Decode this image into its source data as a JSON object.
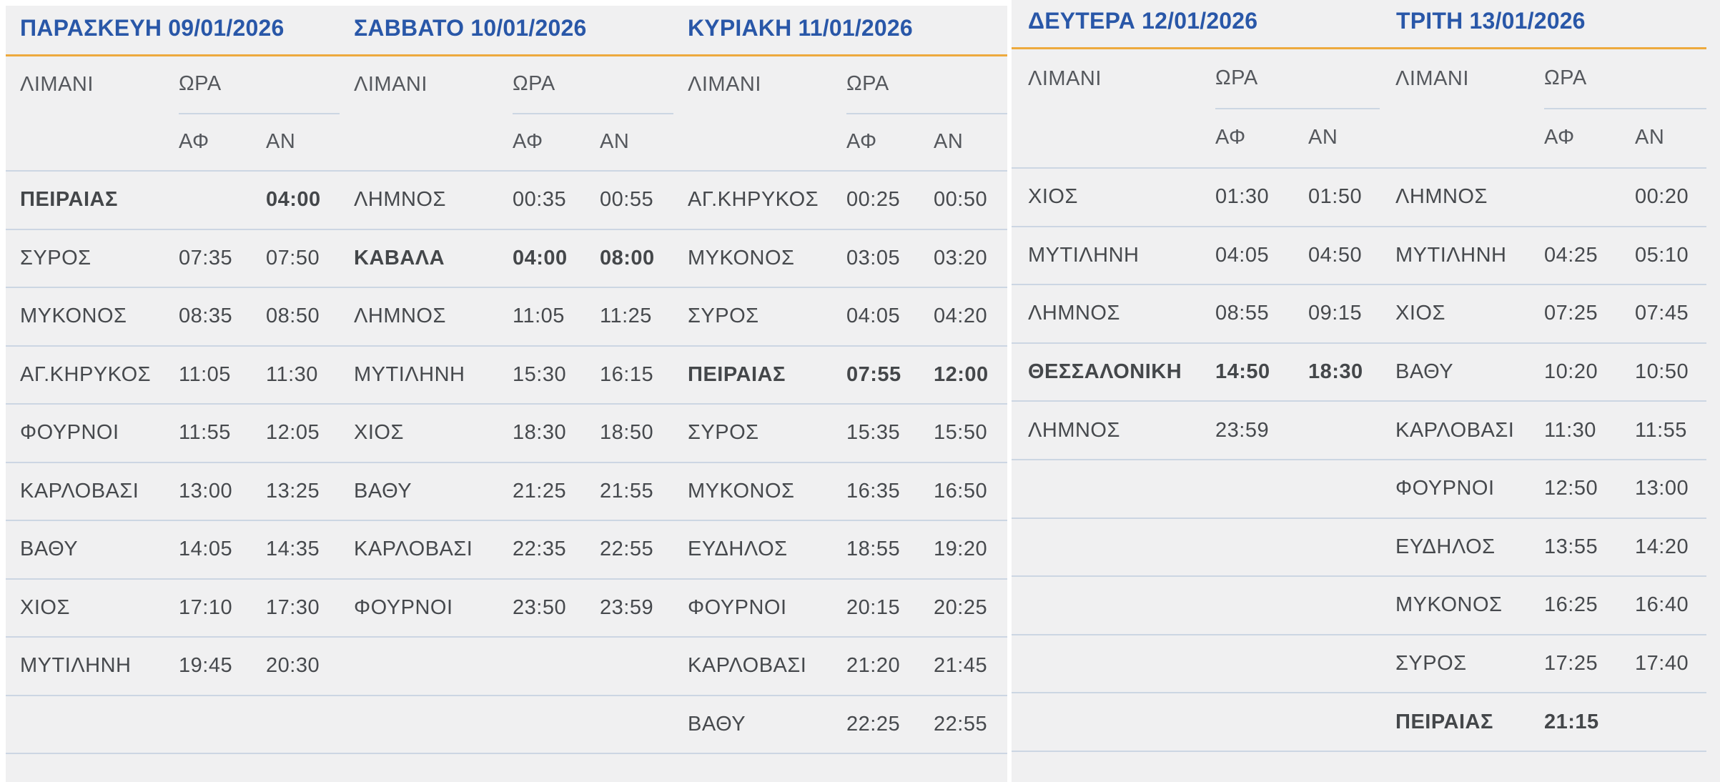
{
  "headers": {
    "port": "ΛΙΜΑΝΙ",
    "time": "ΩΡΑ",
    "arrival": "ΑΦ",
    "departure": "ΑΝ"
  },
  "colors": {
    "accent_blue": "#2957a8",
    "accent_orange": "#edaa3e",
    "divider": "#ccd6e3",
    "panel_bg": "#f0f0f1"
  },
  "days": [
    {
      "title": "ΠΑΡΑΣΚΕΥΗ 09/01/2026",
      "rows": [
        {
          "port": "ΠΕΙΡΑΙΑΣ",
          "af": "",
          "an": "04:00",
          "bold": true
        },
        {
          "port": "ΣΥΡΟΣ",
          "af": "07:35",
          "an": "07:50"
        },
        {
          "port": "ΜΥΚΟΝΟΣ",
          "af": "08:35",
          "an": "08:50"
        },
        {
          "port": "ΑΓ.ΚΗΡΥΚΟΣ",
          "af": "11:05",
          "an": "11:30"
        },
        {
          "port": "ΦΟΥΡΝΟΙ",
          "af": "11:55",
          "an": "12:05"
        },
        {
          "port": "ΚΑΡΛΟΒΑΣΙ",
          "af": "13:00",
          "an": "13:25"
        },
        {
          "port": "ΒΑΘΥ",
          "af": "14:05",
          "an": "14:35"
        },
        {
          "port": "ΧΙΟΣ",
          "af": "17:10",
          "an": "17:30"
        },
        {
          "port": "ΜΥΤΙΛΗΝΗ",
          "af": "19:45",
          "an": "20:30"
        }
      ]
    },
    {
      "title": "ΣΑΒΒΑΤΟ 10/01/2026",
      "rows": [
        {
          "port": "ΛΗΜΝΟΣ",
          "af": "00:35",
          "an": "00:55"
        },
        {
          "port": "ΚΑΒΑΛΑ",
          "af": "04:00",
          "an": "08:00",
          "bold": true
        },
        {
          "port": "ΛΗΜΝΟΣ",
          "af": "11:05",
          "an": "11:25"
        },
        {
          "port": "ΜΥΤΙΛΗΝΗ",
          "af": "15:30",
          "an": "16:15"
        },
        {
          "port": "ΧΙΟΣ",
          "af": "18:30",
          "an": "18:50"
        },
        {
          "port": "ΒΑΘΥ",
          "af": "21:25",
          "an": "21:55"
        },
        {
          "port": "ΚΑΡΛΟΒΑΣΙ",
          "af": "22:35",
          "an": "22:55"
        },
        {
          "port": "ΦΟΥΡΝΟΙ",
          "af": "23:50",
          "an": "23:59"
        }
      ]
    },
    {
      "title": "ΚΥΡΙΑΚΗ 11/01/2026",
      "rows": [
        {
          "port": "ΑΓ.ΚΗΡΥΚΟΣ",
          "af": "00:25",
          "an": "00:50"
        },
        {
          "port": "ΜΥΚΟΝΟΣ",
          "af": "03:05",
          "an": "03:20"
        },
        {
          "port": "ΣΥΡΟΣ",
          "af": "04:05",
          "an": "04:20"
        },
        {
          "port": "ΠΕΙΡΑΙΑΣ",
          "af": "07:55",
          "an": "12:00",
          "bold": true
        },
        {
          "port": "ΣΥΡΟΣ",
          "af": "15:35",
          "an": "15:50"
        },
        {
          "port": "ΜΥΚΟΝΟΣ",
          "af": "16:35",
          "an": "16:50"
        },
        {
          "port": "ΕΥΔΗΛΟΣ",
          "af": "18:55",
          "an": "19:20"
        },
        {
          "port": "ΦΟΥΡΝΟΙ",
          "af": "20:15",
          "an": "20:25"
        },
        {
          "port": "ΚΑΡΛΟΒΑΣΙ",
          "af": "21:20",
          "an": "21:45"
        },
        {
          "port": "ΒΑΘΥ",
          "af": "22:25",
          "an": "22:55"
        }
      ]
    },
    {
      "title": "ΔΕΥΤΕΡΑ 12/01/2026",
      "rows": [
        {
          "port": "ΧΙΟΣ",
          "af": "01:30",
          "an": "01:50"
        },
        {
          "port": "ΜΥΤΙΛΗΝΗ",
          "af": "04:05",
          "an": "04:50"
        },
        {
          "port": "ΛΗΜΝΟΣ",
          "af": "08:55",
          "an": "09:15"
        },
        {
          "port": "ΘΕΣΣΑΛΟΝΙΚΗ",
          "af": "14:50",
          "an": "18:30",
          "bold": true
        },
        {
          "port": "ΛΗΜΝΟΣ",
          "af": "23:59",
          "an": ""
        }
      ]
    },
    {
      "title": "ΤΡΙΤΗ 13/01/2026",
      "rows": [
        {
          "port": "ΛΗΜΝΟΣ",
          "af": "",
          "an": "00:20"
        },
        {
          "port": "ΜΥΤΙΛΗΝΗ",
          "af": "04:25",
          "an": "05:10"
        },
        {
          "port": "ΧΙΟΣ",
          "af": "07:25",
          "an": "07:45"
        },
        {
          "port": "ΒΑΘΥ",
          "af": "10:20",
          "an": "10:50"
        },
        {
          "port": "ΚΑΡΛΟΒΑΣΙ",
          "af": "11:30",
          "an": "11:55"
        },
        {
          "port": "ΦΟΥΡΝΟΙ",
          "af": "12:50",
          "an": "13:00"
        },
        {
          "port": "ΕΥΔΗΛΟΣ",
          "af": "13:55",
          "an": "14:20"
        },
        {
          "port": "ΜΥΚΟΝΟΣ",
          "af": "16:25",
          "an": "16:40"
        },
        {
          "port": "ΣΥΡΟΣ",
          "af": "17:25",
          "an": "17:40"
        },
        {
          "port": "ΠΕΙΡΑΙΑΣ",
          "af": "21:15",
          "an": "",
          "bold": true
        }
      ]
    }
  ]
}
